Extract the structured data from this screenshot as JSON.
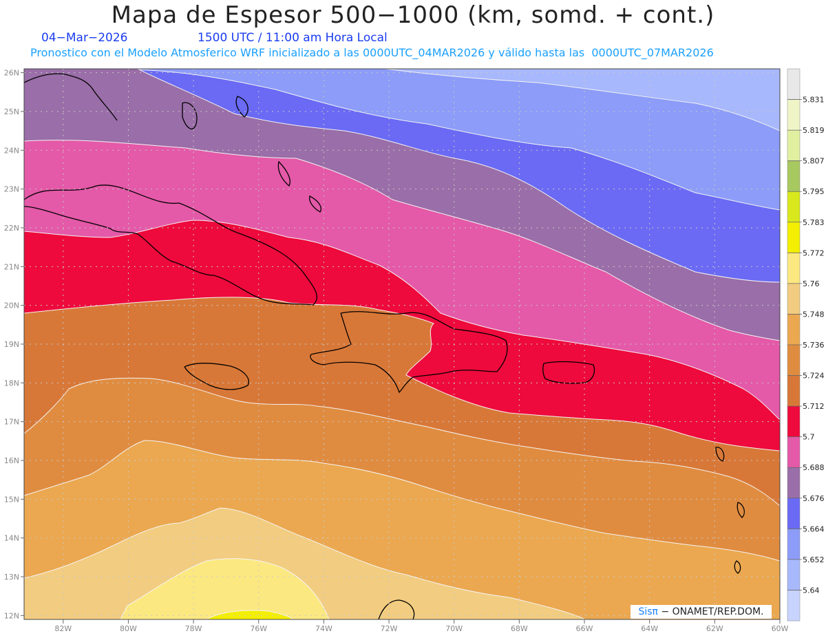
{
  "header": {
    "title": "Mapa de Espesor 500−1000 (km, somd. + cont.)",
    "date": "04−Mar−2026",
    "time": "1500 UTC / 11:00 am Hora Local",
    "description": "Pronostico con el Modelo Atmosferico WRF inicializado a las 0000UTC_04MAR2026 y válido hasta las  0000UTC_07MAR2026"
  },
  "axes": {
    "lat_labels": [
      "26N",
      "25N",
      "24N",
      "23N",
      "22N",
      "21N",
      "20N",
      "19N",
      "18N",
      "17N",
      "16N",
      "15N",
      "14N",
      "13N",
      "12N"
    ],
    "lon_labels": [
      "82W",
      "80W",
      "78W",
      "76W",
      "74W",
      "72W",
      "70W",
      "68W",
      "66W",
      "64W",
      "62W",
      "60W"
    ],
    "lon_range": [
      -83.2,
      -60.0
    ],
    "lat_range": [
      11.9,
      26.1
    ]
  },
  "legend": {
    "levels": [
      "5.831",
      "5.819",
      "5.807",
      "5.795",
      "5.783",
      "5.772",
      "5.76",
      "5.748",
      "5.736",
      "5.724",
      "5.712",
      "5.7",
      "5.688",
      "5.676",
      "5.664",
      "5.652",
      "5.64"
    ],
    "colors": [
      "#e8e8e8",
      "#f0f5c8",
      "#e0f0a0",
      "#a8c860",
      "#d8e81c",
      "#f4ee00",
      "#fce880",
      "#f2cc80",
      "#eba850",
      "#e08c40",
      "#d87838",
      "#ee0a3c",
      "#e459a8",
      "#9a6ea8",
      "#6a6af4",
      "#8c9cf8",
      "#a8b8fc",
      "#c8d4fe"
    ]
  },
  "map": {
    "band_colors": [
      "#c8d4fe",
      "#a8b8fc",
      "#8c9cf8",
      "#6a6af4",
      "#9a6ea8",
      "#e459a8",
      "#ee0a3c",
      "#d87838",
      "#e08c40",
      "#eba850",
      "#f2cc80",
      "#fce880",
      "#f4ee00"
    ]
  },
  "credit": {
    "sis": "Sisπ",
    "text": "− ONAMET/REP.DOM."
  }
}
